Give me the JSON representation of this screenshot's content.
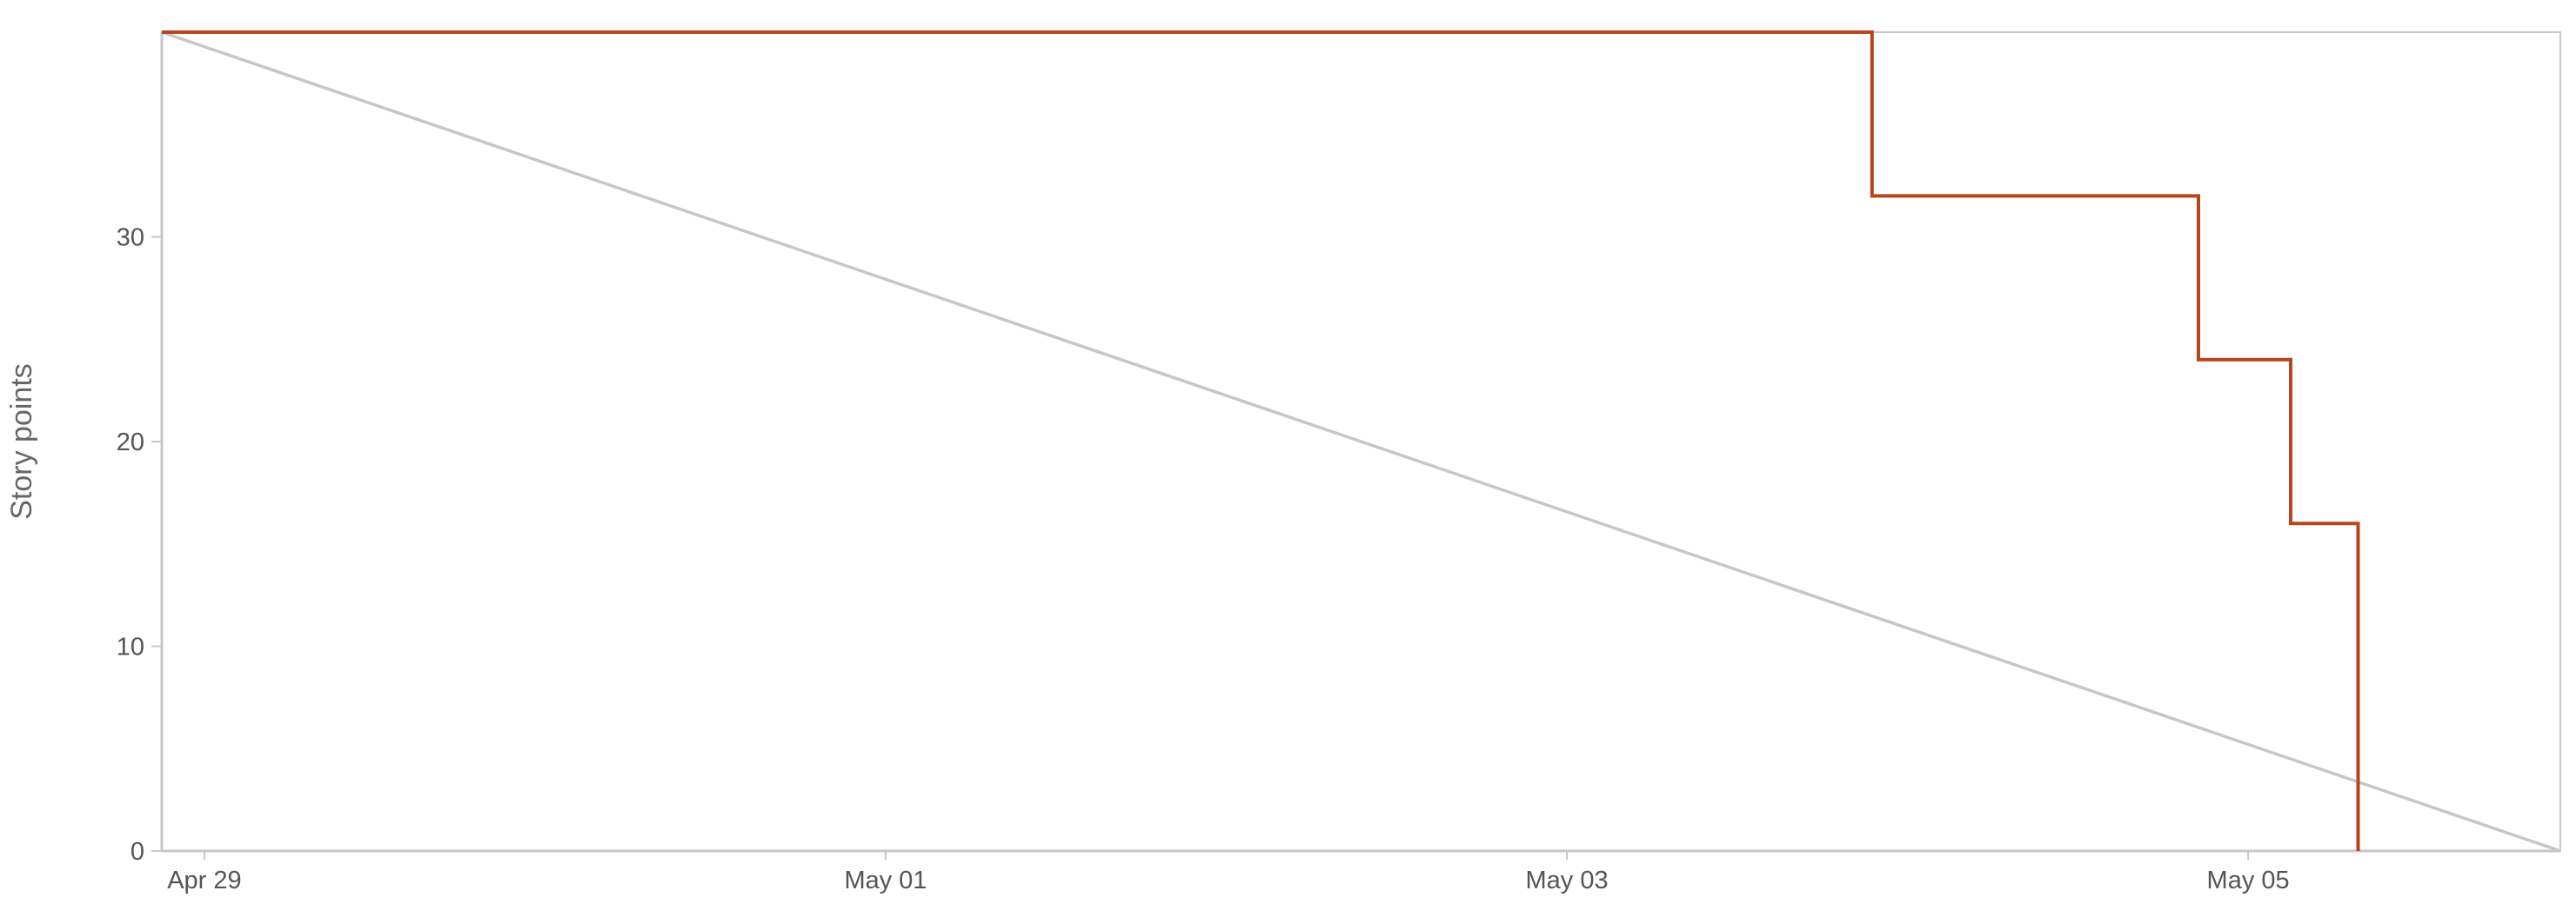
{
  "colors": {
    "actual": "#B5451B",
    "ideal": "#C8C6C8",
    "axis": "#C8C6C8",
    "text": "#555555"
  },
  "chart_data": {
    "type": "line",
    "ylabel": "Story points",
    "xlabel": "",
    "x_ticks": [
      {
        "date": "2024-04-29",
        "label": "Apr 29"
      },
      {
        "date": "2024-05-01",
        "label": "May 01"
      },
      {
        "date": "2024-05-03",
        "label": "May 03"
      },
      {
        "date": "2024-05-05",
        "label": "May 05"
      }
    ],
    "y_ticks": [
      0,
      10,
      20,
      30
    ],
    "xlim": [
      "2024-04-28T21:00",
      "2024-05-05T22:00"
    ],
    "ylim": [
      0,
      40
    ],
    "grid": false,
    "series": [
      {
        "key": "ideal",
        "line": "straight",
        "points": [
          {
            "x": "2024-04-28T21:00",
            "y": 40
          },
          {
            "x": "2024-05-05T22:00",
            "y": 0
          }
        ]
      },
      {
        "key": "actual",
        "line": "step-after",
        "points": [
          {
            "x": "2024-04-28T21:00",
            "y": 40
          },
          {
            "x": "2024-05-03T21:30",
            "y": 32
          },
          {
            "x": "2024-05-04T20:30",
            "y": 24
          },
          {
            "x": "2024-05-05T03:00",
            "y": 16
          },
          {
            "x": "2024-05-05T07:45",
            "y": 0
          }
        ]
      }
    ]
  }
}
